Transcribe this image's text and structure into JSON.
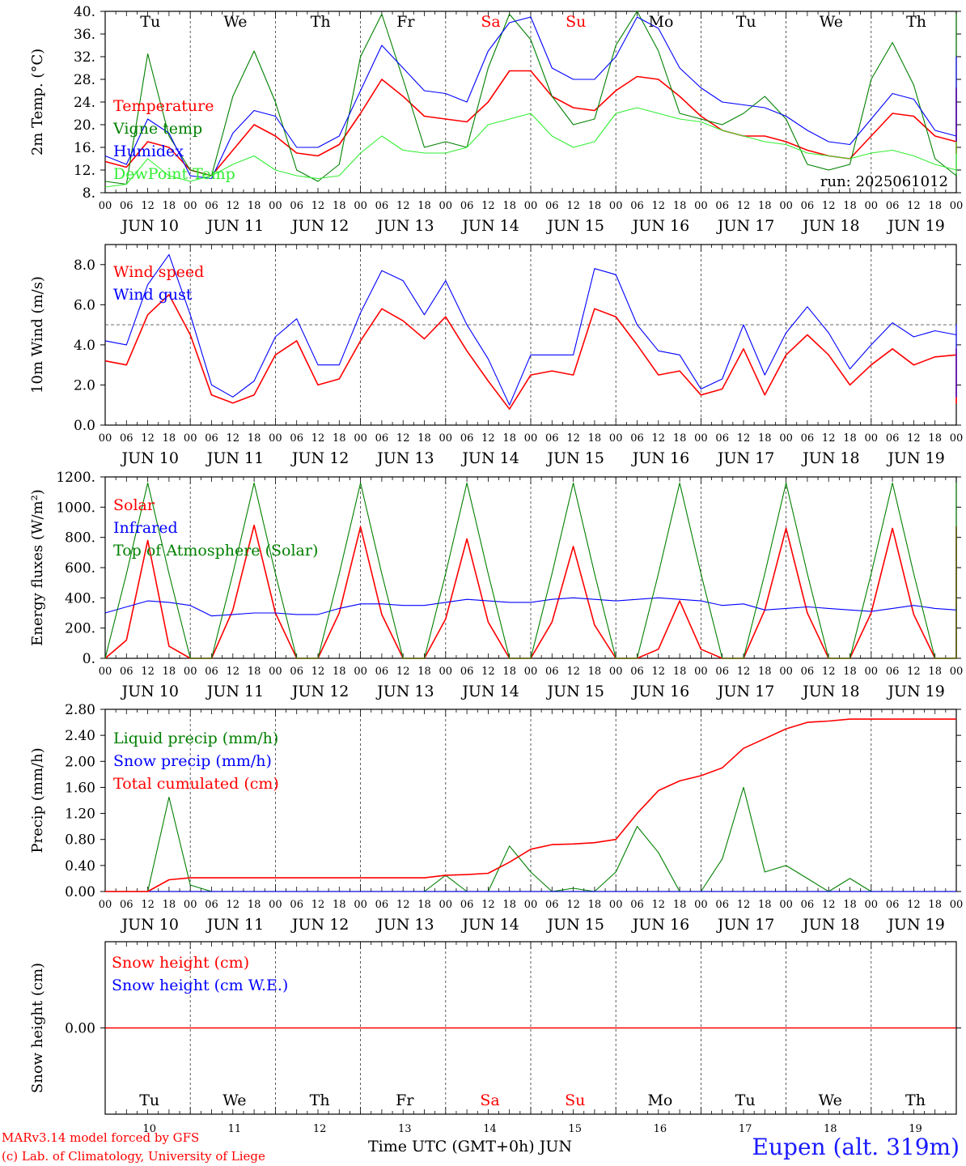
{
  "run_label": "run: 2025061012",
  "days": [
    {
      "dow": "Tu",
      "date": "JUN 10",
      "num": "10",
      "weekend": false
    },
    {
      "dow": "We",
      "date": "JUN 11",
      "num": "11",
      "weekend": false
    },
    {
      "dow": "Th",
      "date": "JUN 12",
      "num": "12",
      "weekend": false
    },
    {
      "dow": "Fr",
      "date": "JUN 13",
      "num": "13",
      "weekend": false
    },
    {
      "dow": "Sa",
      "date": "JUN 14",
      "num": "14",
      "weekend": true
    },
    {
      "dow": "Su",
      "date": "JUN 15",
      "num": "15",
      "weekend": true
    },
    {
      "dow": "Mo",
      "date": "JUN 16",
      "num": "16",
      "weekend": false
    },
    {
      "dow": "Tu",
      "date": "JUN 17",
      "num": "17",
      "weekend": false
    },
    {
      "dow": "We",
      "date": "JUN 18",
      "num": "18",
      "weekend": false
    },
    {
      "dow": "Th",
      "date": "JUN 19",
      "num": "19",
      "weekend": false
    }
  ],
  "hour_labels": [
    "00",
    "06",
    "12",
    "18"
  ],
  "final_hour_label": "00",
  "colors": {
    "red": "#ff0000",
    "blue": "#0000ff",
    "darkgreen": "#008000",
    "lightgreen": "#33ee33",
    "dash": "#555555"
  },
  "chart_data": [
    {
      "type": "line",
      "ylabel": "2m Temp. (°C)",
      "ylim": [
        8,
        40
      ],
      "ticks": [
        8,
        12,
        16,
        20,
        24,
        28,
        32,
        36,
        40
      ],
      "tick_labels": [
        "8.",
        "12.",
        "16.",
        "20.",
        "24.",
        "28.",
        "32.",
        "36.",
        "40."
      ],
      "hline": null,
      "x_start": "2025-06-10 00 UTC",
      "x_step_hours": 6,
      "series": [
        {
          "name": "Temperature",
          "color": "red",
          "values": [
            13.5,
            12.5,
            17,
            16,
            12,
            11,
            15.5,
            20,
            18,
            15,
            14.5,
            16.5,
            22,
            28,
            25,
            21.5,
            21,
            20.5,
            24,
            29.5,
            29.5,
            25,
            23,
            22.5,
            26,
            28.5,
            28,
            25,
            21.5,
            19,
            18,
            18,
            17,
            15.5,
            14.5,
            14,
            18,
            22,
            21.5,
            18,
            17,
            15,
            19.5,
            24,
            24.5,
            21,
            19,
            20,
            24,
            26,
            26.5,
            22,
            19,
            17.5,
            21,
            25,
            25,
            21.5,
            20.5
          ]
        },
        {
          "name": "Vigne temp",
          "color": "darkgreen",
          "values": [
            10,
            9.5,
            32.5,
            18,
            12,
            11,
            25,
            33,
            24,
            12,
            10,
            13,
            32,
            39.5,
            28,
            16,
            17,
            16,
            30,
            39.5,
            35,
            25,
            20,
            21,
            34,
            40,
            33,
            22,
            21,
            20,
            22,
            25,
            21,
            13,
            12,
            13,
            28,
            34.5,
            27,
            14,
            11,
            12,
            28,
            37,
            36,
            18,
            15,
            16,
            28,
            39.5,
            33,
            18,
            14,
            14,
            28,
            38,
            34,
            17,
            15
          ]
        },
        {
          "name": "Humidex",
          "color": "blue",
          "values": [
            14.5,
            13,
            21,
            18.5,
            11,
            10.5,
            18.5,
            22.5,
            21.5,
            16,
            16,
            18,
            26,
            34,
            30,
            26,
            25.5,
            24,
            33,
            38,
            39,
            30,
            28,
            28,
            32,
            39,
            37,
            30,
            26.5,
            24,
            23.5,
            23,
            21.5,
            19,
            17,
            16.5,
            21,
            25.5,
            24.5,
            19,
            18,
            17,
            23.5,
            28.5,
            28,
            23,
            21.5,
            22.5,
            28,
            32,
            31.5,
            26,
            21.5,
            20.5,
            25.5,
            29,
            29.5,
            25,
            23.5
          ]
        },
        {
          "name": "DewPoint Temp",
          "color": "lightgreen",
          "values": [
            9,
            9.5,
            14,
            11,
            10,
            11,
            13,
            14.5,
            12,
            11,
            10.5,
            11,
            15,
            18,
            15.5,
            15,
            15,
            16,
            20,
            21,
            22,
            18,
            16,
            17,
            22,
            23,
            22,
            21,
            20.5,
            19,
            18,
            17,
            16.5,
            15,
            14.5,
            14,
            15,
            15.5,
            14.5,
            13,
            12,
            11.5,
            14,
            16,
            15.5,
            14,
            13,
            14,
            16,
            17,
            15.5,
            15,
            15,
            14,
            15,
            16,
            15,
            13,
            12.5
          ]
        }
      ]
    },
    {
      "type": "line",
      "ylabel": "10m Wind (m/s)",
      "ylim": [
        0,
        9
      ],
      "ticks": [
        0,
        2,
        4,
        6,
        8
      ],
      "tick_labels": [
        "0.0",
        "2.0",
        "4.0",
        "6.0",
        "8.0"
      ],
      "hline": 5,
      "x_start": "2025-06-10 00 UTC",
      "x_step_hours": 6,
      "series": [
        {
          "name": "Wind speed",
          "color": "red",
          "values": [
            3.2,
            3,
            5.5,
            6.5,
            4.5,
            1.5,
            1.1,
            1.5,
            3.5,
            4.2,
            2,
            2.3,
            4.2,
            5.8,
            5.2,
            4.3,
            5.4,
            3.7,
            2.2,
            0.8,
            2.5,
            2.7,
            2.5,
            5.8,
            5.4,
            4,
            2.5,
            2.7,
            1.5,
            1.8,
            3.8,
            1.5,
            3.5,
            4.5,
            3.5,
            2,
            3,
            3.8,
            3,
            3.4,
            3.5,
            1.2,
            1.1,
            1.8,
            3,
            3.8,
            3.2,
            1.8,
            1.8,
            2.5,
            3.5,
            3.6,
            1.7,
            1.6,
            2.2,
            2.8,
            3.6,
            3.2,
            2
          ]
        },
        {
          "name": "Wind gust",
          "color": "blue",
          "values": [
            4.2,
            4,
            7,
            8.5,
            5.5,
            2,
            1.4,
            2.2,
            4.4,
            5.3,
            3,
            3,
            5.6,
            7.7,
            7.2,
            5.5,
            7.2,
            5,
            3.3,
            1,
            3.5,
            3.5,
            3.5,
            7.8,
            7.5,
            5,
            3.7,
            3.5,
            1.8,
            2.3,
            5,
            2.5,
            4.6,
            5.9,
            4.6,
            2.8,
            4,
            5.1,
            4.4,
            4.7,
            4.5,
            1.5,
            1.4,
            2.5,
            4,
            5,
            4.2,
            2.3,
            2.5,
            3.3,
            4.7,
            5,
            2.2,
            2,
            3,
            3.8,
            4.8,
            4.2,
            3.6
          ]
        }
      ]
    },
    {
      "type": "line",
      "ylabel": "Energy fluxes (W/m²)",
      "ylim": [
        0,
        1200
      ],
      "ticks": [
        0,
        200,
        400,
        600,
        800,
        1000,
        1200
      ],
      "tick_labels": [
        "0.",
        "200.",
        "400.",
        "600.",
        "800.",
        "1000.",
        "1200."
      ],
      "hline": null,
      "x_start": "2025-06-10 00 UTC",
      "x_step_hours": 6,
      "series": [
        {
          "name": "Solar",
          "color": "red",
          "values": [
            0,
            120,
            780,
            80,
            0,
            0,
            320,
            880,
            300,
            0,
            0,
            300,
            870,
            290,
            0,
            0,
            260,
            790,
            240,
            0,
            0,
            240,
            740,
            220,
            0,
            0,
            60,
            380,
            60,
            0,
            0,
            320,
            860,
            300,
            0,
            0,
            300,
            860,
            290,
            0,
            0,
            280,
            860,
            290,
            0,
            0,
            300,
            870,
            300,
            0
          ]
        },
        {
          "name": "Infrared",
          "color": "blue",
          "values": [
            300,
            340,
            380,
            370,
            350,
            280,
            290,
            300,
            300,
            290,
            290,
            330,
            360,
            360,
            350,
            350,
            370,
            390,
            380,
            370,
            370,
            390,
            400,
            390,
            380,
            390,
            400,
            390,
            380,
            350,
            360,
            320,
            330,
            340,
            330,
            320,
            310,
            330,
            350,
            330,
            320,
            330,
            350,
            360,
            330,
            320,
            310,
            320,
            330,
            330
          ]
        },
        {
          "name": "Top of Atmosphere (Solar)",
          "color": "darkgreen",
          "values": [
            0,
            560,
            1160,
            560,
            0,
            0,
            560,
            1160,
            560,
            0,
            0,
            560,
            1160,
            560,
            0,
            0,
            560,
            1160,
            560,
            0,
            0,
            560,
            1160,
            560,
            0,
            0,
            560,
            1160,
            560,
            0,
            0,
            560,
            1160,
            560,
            0,
            0,
            560,
            1160,
            560,
            0,
            0,
            560,
            1160,
            560,
            0,
            0,
            560,
            1160,
            560,
            0
          ]
        }
      ]
    },
    {
      "type": "line",
      "ylabel": "Precip (mm/h)",
      "ylim": [
        0,
        2.8
      ],
      "ticks": [
        0,
        0.4,
        0.8,
        1.2,
        1.6,
        2.0,
        2.4,
        2.8
      ],
      "tick_labels": [
        "0.00",
        "0.40",
        "0.80",
        "1.20",
        "1.60",
        "2.00",
        "2.40",
        "2.80"
      ],
      "hline": null,
      "x_start": "2025-06-10 00 UTC",
      "x_step_hours": 6,
      "series": [
        {
          "name": "Liquid precip (mm/h)",
          "color": "darkgreen",
          "values": [
            0,
            0,
            0,
            1.45,
            0.1,
            0,
            0,
            0,
            0,
            0,
            0,
            0,
            0,
            0,
            0,
            0,
            0.25,
            0,
            0,
            0.7,
            0.3,
            0,
            0.05,
            0,
            0.3,
            1.0,
            0.6,
            0,
            0,
            0.5,
            1.6,
            0.3,
            0.4,
            0.2,
            0,
            0.2,
            0,
            0,
            0,
            0,
            0,
            0,
            0,
            0,
            0,
            0,
            0,
            0,
            0,
            0,
            0,
            0,
            0,
            0,
            0,
            0,
            0,
            0,
            0,
            0,
            0
          ]
        },
        {
          "name": "Snow precip (mm/h)",
          "color": "blue",
          "values": [
            0,
            0,
            0,
            0,
            0,
            0,
            0,
            0,
            0,
            0,
            0,
            0,
            0,
            0,
            0,
            0,
            0,
            0,
            0,
            0,
            0,
            0,
            0,
            0,
            0,
            0,
            0,
            0,
            0,
            0,
            0,
            0,
            0,
            0,
            0,
            0,
            0,
            0,
            0,
            0,
            0,
            0,
            0,
            0,
            0,
            0,
            0,
            0,
            0,
            0,
            0,
            0,
            0,
            0,
            0,
            0,
            0,
            0,
            0,
            0,
            0
          ]
        },
        {
          "name": "Total cumulated (cm)",
          "color": "red",
          "values": [
            0,
            0,
            0,
            0.18,
            0.21,
            0.21,
            0.21,
            0.21,
            0.21,
            0.21,
            0.21,
            0.21,
            0.21,
            0.21,
            0.21,
            0.21,
            0.25,
            0.26,
            0.28,
            0.45,
            0.65,
            0.72,
            0.73,
            0.75,
            0.8,
            1.2,
            1.55,
            1.7,
            1.78,
            1.9,
            2.2,
            2.35,
            2.5,
            2.6,
            2.62,
            2.65,
            2.65,
            2.65,
            2.65,
            2.65,
            2.65,
            2.65,
            2.65,
            2.65,
            2.65,
            2.65,
            2.65,
            2.65,
            2.65,
            2.65,
            2.65,
            2.65,
            2.65,
            2.65,
            2.65,
            2.65,
            2.65,
            2.65,
            2.65,
            2.65,
            2.65
          ]
        }
      ]
    },
    {
      "type": "line",
      "ylabel": "Snow height (cm)",
      "ylim": [
        -1,
        1
      ],
      "ticks": [
        0
      ],
      "tick_labels": [
        "0.00"
      ],
      "hline": null,
      "x_start": "2025-06-10 00 UTC",
      "x_step_hours": 6,
      "series": [
        {
          "name": "Snow height (cm)",
          "color": "red",
          "values": [
            0,
            0
          ]
        },
        {
          "name": "Snow height (cm W.E.)",
          "color": "blue",
          "values": []
        }
      ]
    }
  ],
  "footer": {
    "credit1": "MARv3.14 model forced by GFS",
    "credit2": "(c) Lab. of Climatology, University of Liege",
    "xtitle": "Time UTC (GMT+0h) JUN",
    "station": "Eupen (alt. 319m)"
  }
}
